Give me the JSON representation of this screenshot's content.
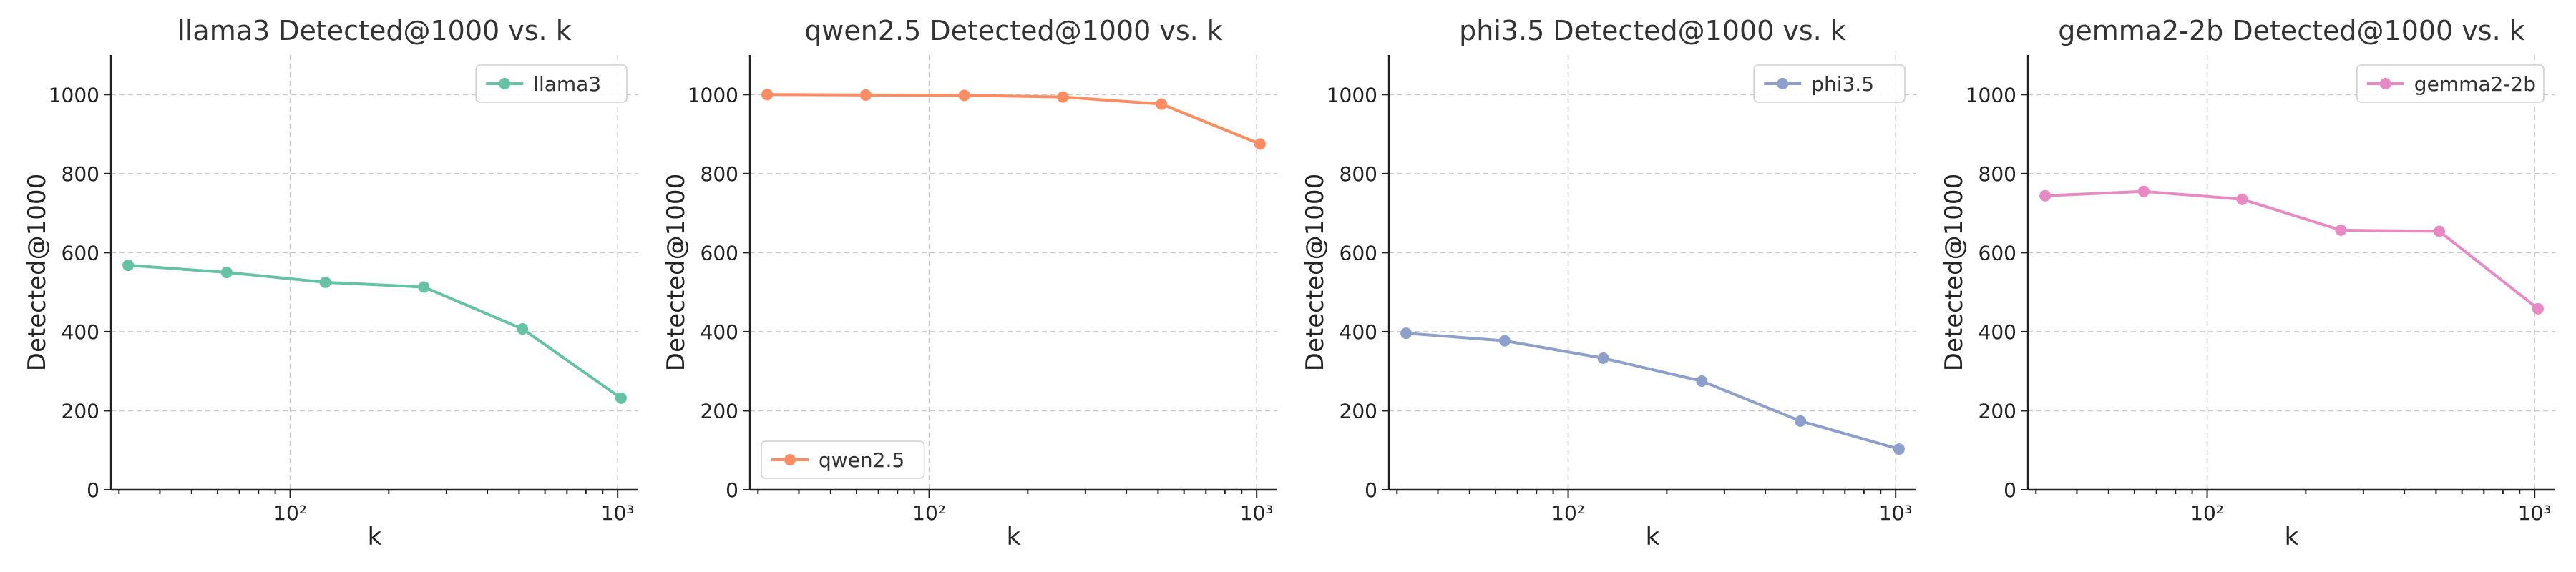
{
  "chart_data": [
    {
      "type": "line",
      "title": "llama3 Detected@1000 vs. k",
      "xlabel": "k",
      "ylabel": "Detected@1000",
      "xscale": "log",
      "x": [
        32,
        64,
        128,
        256,
        512,
        1024
      ],
      "ylim": [
        0,
        1100
      ],
      "yticks": [
        0,
        200,
        400,
        600,
        800,
        1000
      ],
      "xtick_labels": [
        {
          "value": 100,
          "label": "10²"
        },
        {
          "value": 1000,
          "label": "10³"
        }
      ],
      "grid": true,
      "legend_position": "upper-right",
      "series": [
        {
          "name": "llama3",
          "color": "#66c2a5",
          "values": [
            568,
            550,
            525,
            513,
            407,
            232
          ]
        }
      ]
    },
    {
      "type": "line",
      "title": "qwen2.5 Detected@1000 vs. k",
      "xlabel": "k",
      "ylabel": "Detected@1000",
      "xscale": "log",
      "x": [
        32,
        64,
        128,
        256,
        512,
        1024
      ],
      "ylim": [
        0,
        1100
      ],
      "yticks": [
        0,
        200,
        400,
        600,
        800,
        1000
      ],
      "xtick_labels": [
        {
          "value": 100,
          "label": "10²"
        },
        {
          "value": 1000,
          "label": "10³"
        }
      ],
      "grid": true,
      "legend_position": "lower-left",
      "series": [
        {
          "name": "qwen2.5",
          "color": "#fc8d62",
          "values": [
            1000,
            999,
            998,
            994,
            976,
            875
          ]
        }
      ]
    },
    {
      "type": "line",
      "title": "phi3.5 Detected@1000 vs. k",
      "xlabel": "k",
      "ylabel": "Detected@1000",
      "xscale": "log",
      "x": [
        32,
        64,
        128,
        256,
        512,
        1024
      ],
      "ylim": [
        0,
        1100
      ],
      "yticks": [
        0,
        200,
        400,
        600,
        800,
        1000
      ],
      "xtick_labels": [
        {
          "value": 100,
          "label": "10²"
        },
        {
          "value": 1000,
          "label": "10³"
        }
      ],
      "grid": true,
      "legend_position": "upper-right",
      "series": [
        {
          "name": "phi3.5",
          "color": "#8da0cb",
          "values": [
            396,
            377,
            333,
            275,
            174,
            103
          ]
        }
      ]
    },
    {
      "type": "line",
      "title": "gemma2-2b Detected@1000 vs. k",
      "xlabel": "k",
      "ylabel": "Detected@1000",
      "xscale": "log",
      "x": [
        32,
        64,
        128,
        256,
        512,
        1024
      ],
      "ylim": [
        0,
        1100
      ],
      "yticks": [
        0,
        200,
        400,
        600,
        800,
        1000
      ],
      "xtick_labels": [
        {
          "value": 100,
          "label": "10²"
        },
        {
          "value": 1000,
          "label": "10³"
        }
      ],
      "grid": true,
      "legend_position": "upper-right",
      "series": [
        {
          "name": "gemma2-2b",
          "color": "#e78ac3",
          "values": [
            744,
            755,
            735,
            657,
            654,
            458
          ]
        }
      ]
    }
  ]
}
